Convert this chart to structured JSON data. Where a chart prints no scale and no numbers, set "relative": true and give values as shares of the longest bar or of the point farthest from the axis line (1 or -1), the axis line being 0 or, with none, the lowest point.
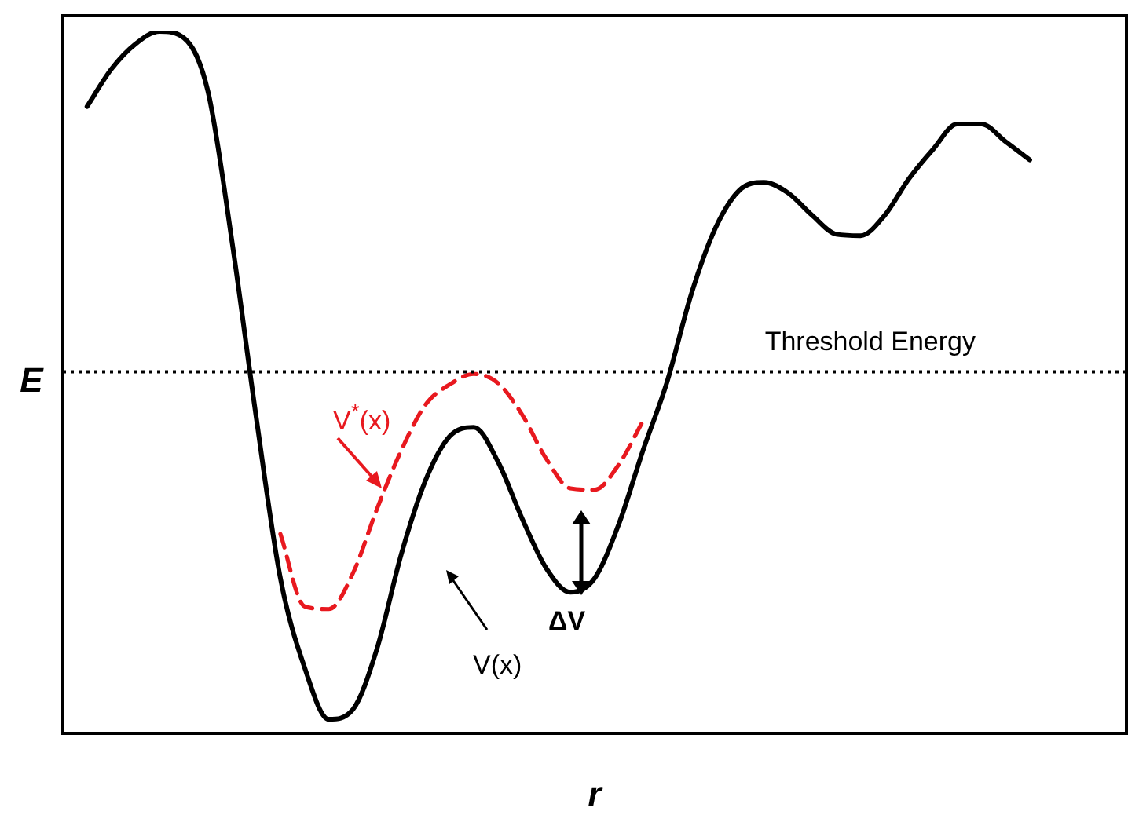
{
  "chart_data": {
    "type": "line",
    "relative": true,
    "xlabel": "r",
    "ylabel": "E",
    "categories": [
      null,
      null,
      null,
      null,
      null,
      null,
      null,
      null,
      null,
      null,
      null,
      null,
      null,
      null,
      null,
      null,
      null,
      null,
      null,
      null,
      null,
      null,
      null,
      null,
      null,
      null,
      null,
      null,
      null,
      null,
      null,
      null,
      null,
      null,
      null,
      null,
      null,
      null,
      null,
      null,
      null,
      null,
      null,
      null,
      null
    ],
    "series": [
      {
        "color": "#000000",
        "line_style": "solid",
        "values": [
          null,
          0.893,
          0.946,
          0.982,
          1,
          0.991,
          0.915,
          0.7,
          0.45,
          0.221,
          0.094,
          0.02,
          0.034,
          0.121,
          0.255,
          0.36,
          0.423,
          0.436,
          0.387,
          0.306,
          0.235,
          0.201,
          0.221,
          0.298,
          0.403,
          0.501,
          0.626,
          0.72,
          0.774,
          0.785,
          0.77,
          0.738,
          0.711,
          0.709,
          0.738,
          0.79,
          0.832,
          0.868,
          0.868,
          0.843,
          0.817,
          null,
          null,
          null,
          null
        ]
      },
      {
        "color": "#e8191f",
        "line_style": "dashed",
        "values": [
          null,
          null,
          null,
          null,
          null,
          null,
          null,
          null,
          null,
          0.284,
          0.181,
          0.177,
          0.228,
          0.32,
          0.403,
          0.468,
          0.497,
          0.512,
          0.499,
          0.454,
          0.391,
          0.349,
          0.347,
          0.383,
          0.445,
          null,
          null,
          null,
          null,
          null,
          null,
          null,
          null,
          null,
          null,
          null,
          null,
          null,
          null,
          null,
          null,
          null,
          null,
          null,
          null
        ]
      }
    ],
    "ref_lines": [
      {
        "axis": "y",
        "value": 0.515,
        "label": "Threshold Energy",
        "color": "#000000",
        "line_style": "dotted"
      }
    ],
    "annotations": [
      "V$^{*}$(x)",
      "ΔV",
      "V(x)"
    ],
    "legend": false,
    "marker": "none"
  }
}
